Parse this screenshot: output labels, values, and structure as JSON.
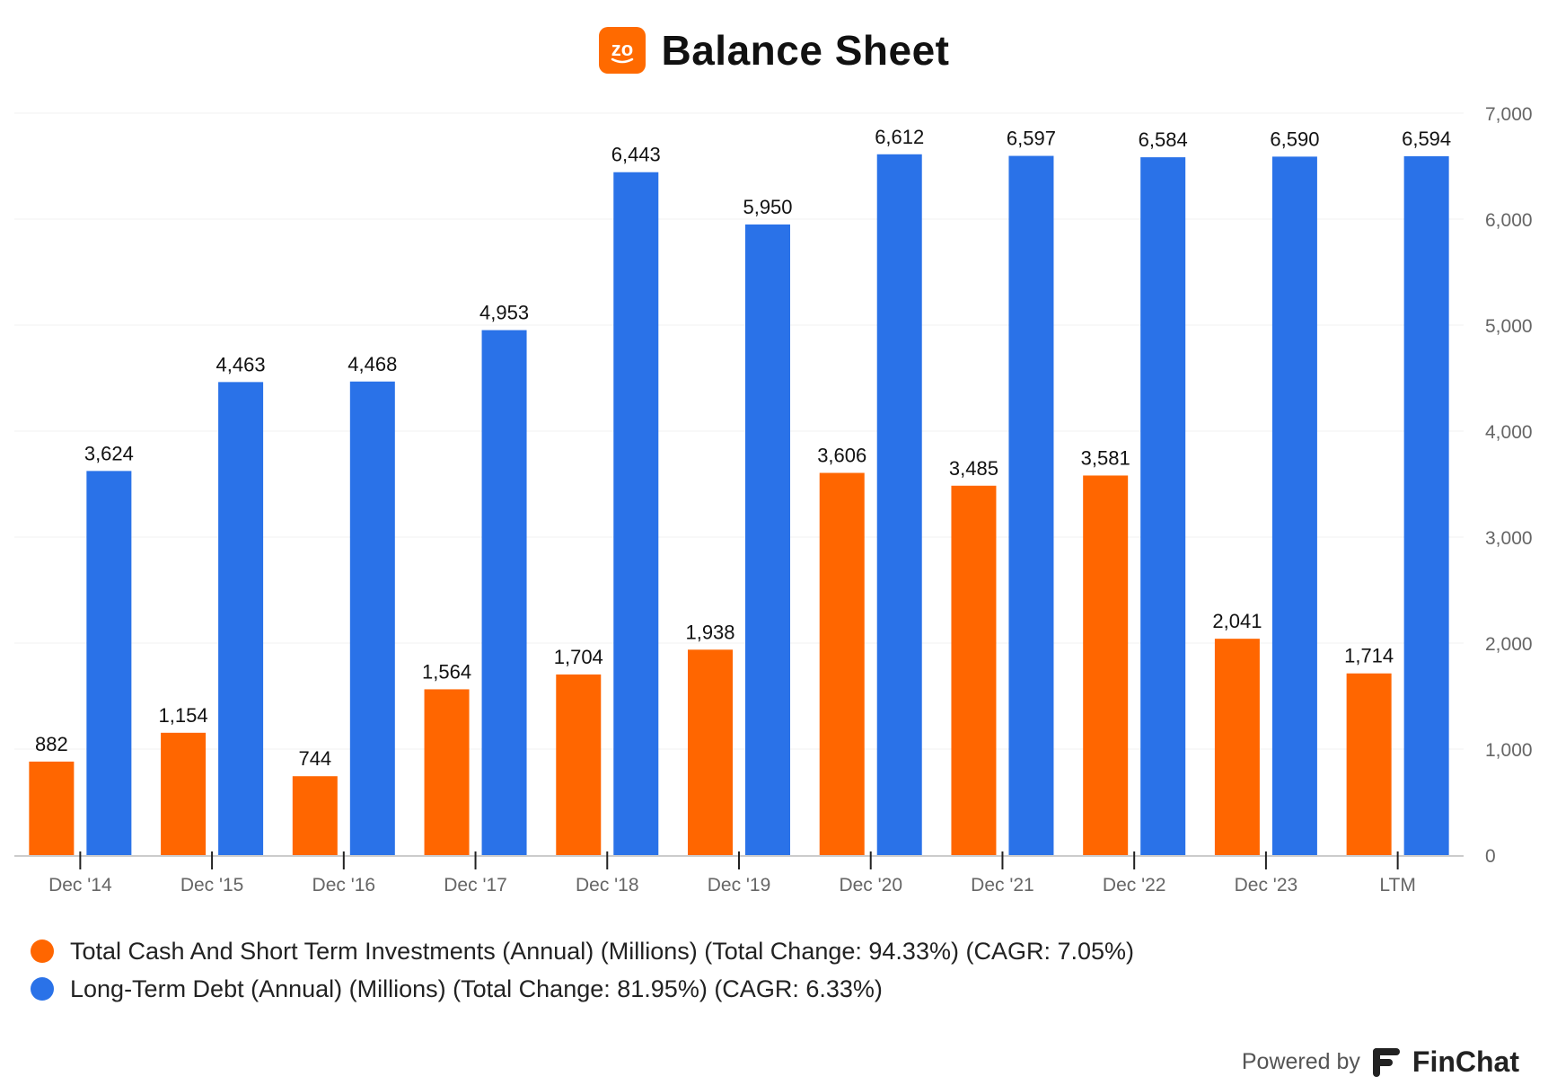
{
  "header": {
    "title": "Balance Sheet",
    "logo_text": "zo",
    "logo_color": "#ff6a00"
  },
  "chart_data": {
    "type": "bar",
    "title": "Balance Sheet",
    "categories": [
      "Dec '14",
      "Dec '15",
      "Dec '16",
      "Dec '17",
      "Dec '18",
      "Dec '19",
      "Dec '20",
      "Dec '21",
      "Dec '22",
      "Dec '23",
      "LTM"
    ],
    "series": [
      {
        "name": "Total Cash And Short Term Investments (Annual) (Millions) (Total Change: 94.33%) (CAGR: 7.05%)",
        "color": "#ff6600",
        "values": [
          882,
          1154,
          744,
          1564,
          1704,
          1938,
          3606,
          3485,
          3581,
          2041,
          1714
        ],
        "labels": [
          "882",
          "1,154",
          "744",
          "1,564",
          "1,704",
          "1,938",
          "3,606",
          "3,485",
          "3,581",
          "2,041",
          "1,714"
        ]
      },
      {
        "name": "Long-Term Debt (Annual) (Millions) (Total Change: 81.95%) (CAGR: 6.33%)",
        "color": "#2a72e8",
        "values": [
          3624,
          4463,
          4468,
          4953,
          6443,
          5950,
          6612,
          6597,
          6584,
          6590,
          6594
        ],
        "labels": [
          "3,624",
          "4,463",
          "4,468",
          "4,953",
          "6,443",
          "5,950",
          "6,612",
          "6,597",
          "6,584",
          "6,590",
          "6,594"
        ]
      }
    ],
    "y_ticks": [
      "0",
      "1,000",
      "2,000",
      "3,000",
      "4,000",
      "5,000",
      "6,000",
      "7,000"
    ],
    "ylim": [
      0,
      7000
    ],
    "y_axis_side": "right",
    "legend_position": "bottom-left",
    "grid": true
  },
  "footer": {
    "powered_by": "Powered by",
    "brand": "FinChat"
  }
}
